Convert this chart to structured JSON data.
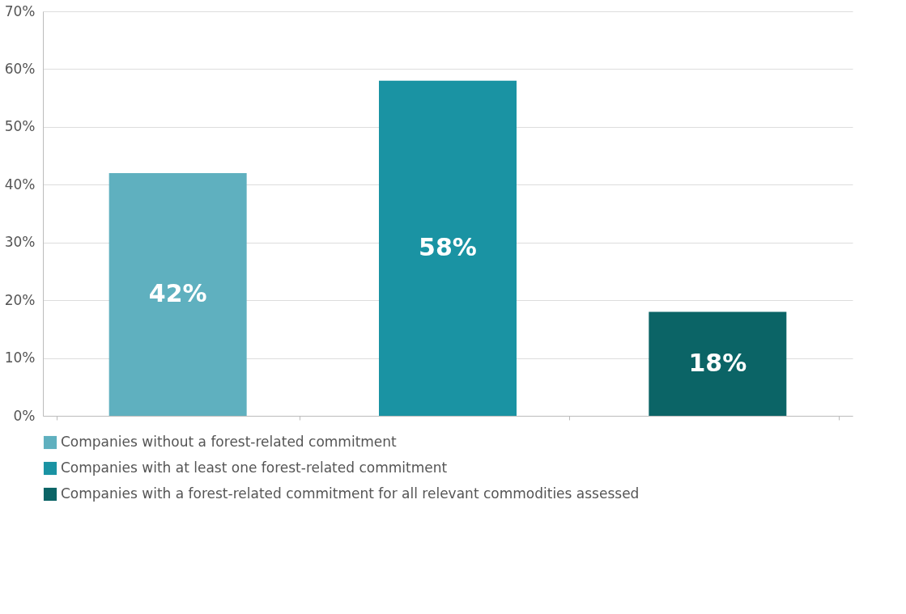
{
  "chart_data": {
    "type": "bar",
    "categories": [
      null,
      null,
      null
    ],
    "series": [
      {
        "name": "Companies without a forest-related commitment",
        "color": "#5fb0bf",
        "values": [
          42,
          null,
          null
        ],
        "value_labels": [
          "42%",
          null,
          null
        ]
      },
      {
        "name": "Companies with at least one forest-related commitment",
        "color": "#1a93a3",
        "values": [
          null,
          58,
          null
        ],
        "value_labels": [
          null,
          "58%",
          null
        ]
      },
      {
        "name": "Companies with a forest-related commitment for all relevant commodities assessed",
        "color": "#0b6466",
        "values": [
          null,
          null,
          18
        ],
        "value_labels": [
          null,
          null,
          "18%"
        ]
      }
    ],
    "ylim": [
      0,
      70
    ],
    "yticks": [
      {
        "value": 0,
        "label": "0%"
      },
      {
        "value": 10,
        "label": "10%"
      },
      {
        "value": 20,
        "label": "20%"
      },
      {
        "value": 30,
        "label": "30%"
      },
      {
        "value": 40,
        "label": "40%"
      },
      {
        "value": 50,
        "label": "50%"
      },
      {
        "value": 60,
        "label": "60%"
      },
      {
        "value": 70,
        "label": "70%"
      }
    ],
    "grid": "y",
    "legend": "bottom"
  }
}
